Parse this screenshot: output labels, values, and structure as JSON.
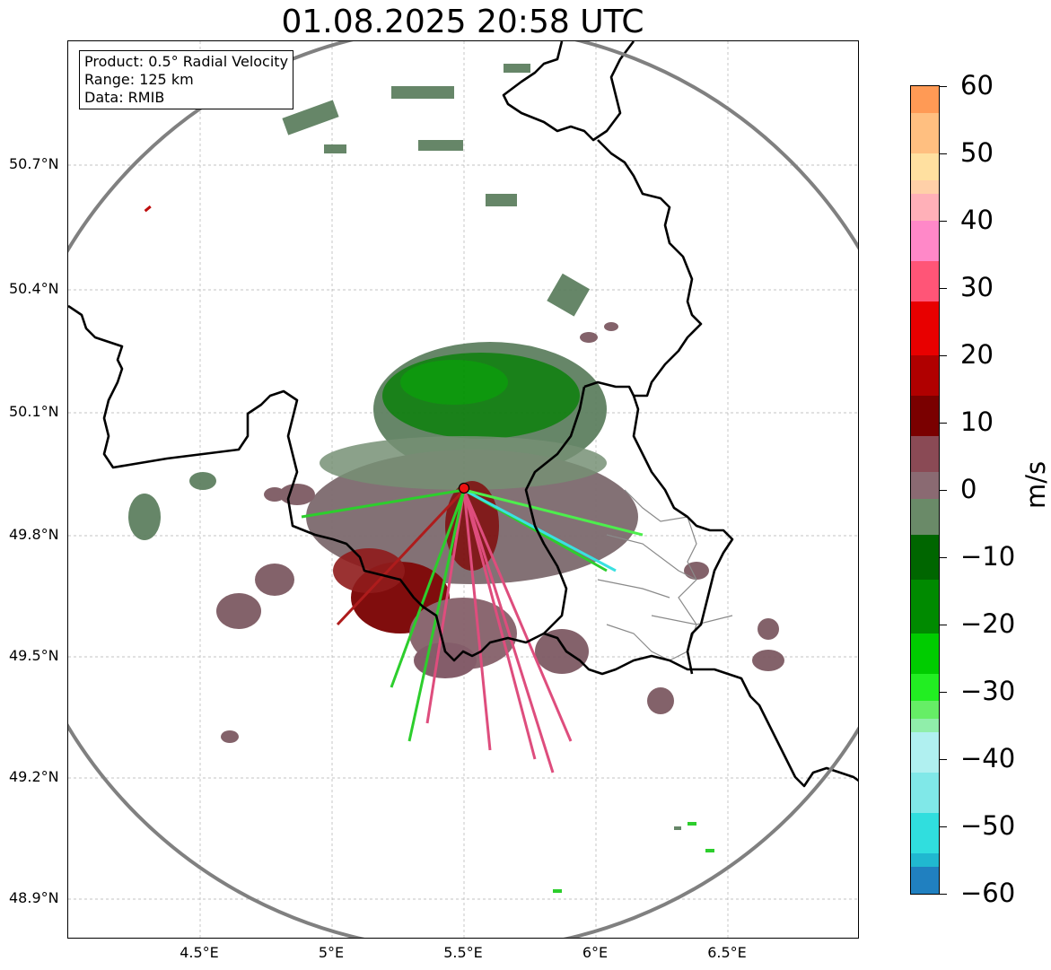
{
  "title": "01.08.2025 20:58 UTC",
  "info": {
    "product": "Product: 0.5° Radial Velocity",
    "range": "Range: 125 km",
    "data": "Data: RMIB"
  },
  "axes": {
    "lat_labels": [
      "50.7°N",
      "50.4°N",
      "50.1°N",
      "49.8°N",
      "49.5°N",
      "49.2°N",
      "48.9°N"
    ],
    "lon_labels": [
      "4.5°E",
      "5°E",
      "5.5°E",
      "6°E",
      "6.5°E"
    ]
  },
  "colorbar": {
    "unit": "m/s",
    "ticks": [
      "60",
      "50",
      "40",
      "30",
      "20",
      "10",
      "0",
      "−10",
      "−20",
      "−30",
      "−40",
      "−50",
      "−60"
    ],
    "range": [
      -60,
      60
    ],
    "colors": {
      "pos_high": "#ffa060",
      "pos_mid": "#ffd090",
      "pink": "#ff88cc",
      "red": "#ee0000",
      "dark_red": "#7a0000",
      "neutral_pink": "#8a6a72",
      "neutral_green": "#5a7a5a",
      "green": "#00aa00",
      "bright_green": "#22ee22",
      "cyan": "#30e0e0",
      "blue": "#2080c0"
    }
  },
  "map": {
    "radar_site": "radar-site-marker",
    "range_ring_color": "#808080",
    "border_color": "#000000"
  }
}
